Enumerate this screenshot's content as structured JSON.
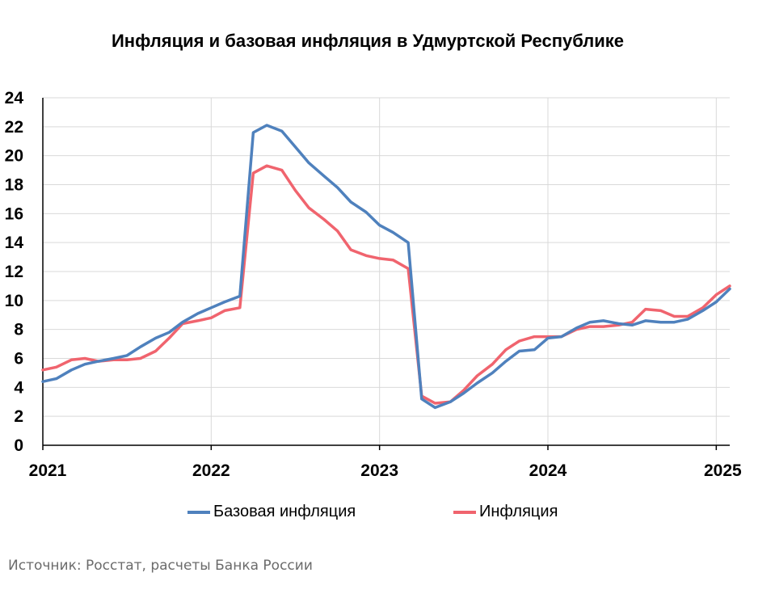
{
  "chart_data": {
    "type": "line",
    "title": "Инфляция и базовая инфляция в Удмуртской Республике",
    "xlabel": "",
    "ylabel": "",
    "ylim": [
      0,
      24
    ],
    "yticks": [
      "0",
      "2",
      "4",
      "6",
      "8",
      "10",
      "12",
      "14",
      "16",
      "18",
      "20",
      "22",
      "24"
    ],
    "xticks": [
      "2021",
      "2022",
      "2023",
      "2024",
      "2025"
    ],
    "xlim": [
      2021.0,
      2025.08
    ],
    "grid": true,
    "legend_position": "bottom",
    "x": [
      2021.0,
      2021.08,
      2021.17,
      2021.25,
      2021.33,
      2021.42,
      2021.5,
      2021.58,
      2021.67,
      2021.75,
      2021.83,
      2021.92,
      2022.0,
      2022.08,
      2022.17,
      2022.25,
      2022.33,
      2022.42,
      2022.5,
      2022.58,
      2022.67,
      2022.75,
      2022.83,
      2022.92,
      2023.0,
      2023.08,
      2023.17,
      2023.25,
      2023.33,
      2023.42,
      2023.5,
      2023.58,
      2023.67,
      2023.75,
      2023.83,
      2023.92,
      2024.0,
      2024.08,
      2024.17,
      2024.25,
      2024.33,
      2024.42,
      2024.5,
      2024.58,
      2024.67,
      2024.75,
      2024.83,
      2024.92,
      2025.0,
      2025.08
    ],
    "series": [
      {
        "name": "Базовая инфляция",
        "color": "#4f81bd",
        "values": [
          4.4,
          4.6,
          5.2,
          5.6,
          5.8,
          6.0,
          6.2,
          6.8,
          7.4,
          7.8,
          8.5,
          9.1,
          9.5,
          9.9,
          10.3,
          21.6,
          22.1,
          21.7,
          20.6,
          19.5,
          18.6,
          17.8,
          16.8,
          16.1,
          15.2,
          14.7,
          14.0,
          3.2,
          2.6,
          3.0,
          3.6,
          4.3,
          5.0,
          5.8,
          6.5,
          6.6,
          7.4,
          7.5,
          8.1,
          8.5,
          8.6,
          8.4,
          8.3,
          8.6,
          8.5,
          8.5,
          8.7,
          9.3,
          9.9,
          10.8
        ]
      },
      {
        "name": "Инфляция",
        "color": "#f0646e",
        "values": [
          5.2,
          5.4,
          5.9,
          6.0,
          5.8,
          5.9,
          5.9,
          6.0,
          6.5,
          7.4,
          8.4,
          8.6,
          8.8,
          9.3,
          9.5,
          18.8,
          19.3,
          19.0,
          17.6,
          16.4,
          15.6,
          14.8,
          13.5,
          13.1,
          12.9,
          12.8,
          12.2,
          3.4,
          2.9,
          3.0,
          3.8,
          4.8,
          5.6,
          6.6,
          7.2,
          7.5,
          7.5,
          7.5,
          8.0,
          8.2,
          8.2,
          8.3,
          8.5,
          9.4,
          9.3,
          8.9,
          8.9,
          9.5,
          10.4,
          11.0
        ]
      }
    ],
    "source": "Источник: Росстат, расчеты Банка России"
  }
}
